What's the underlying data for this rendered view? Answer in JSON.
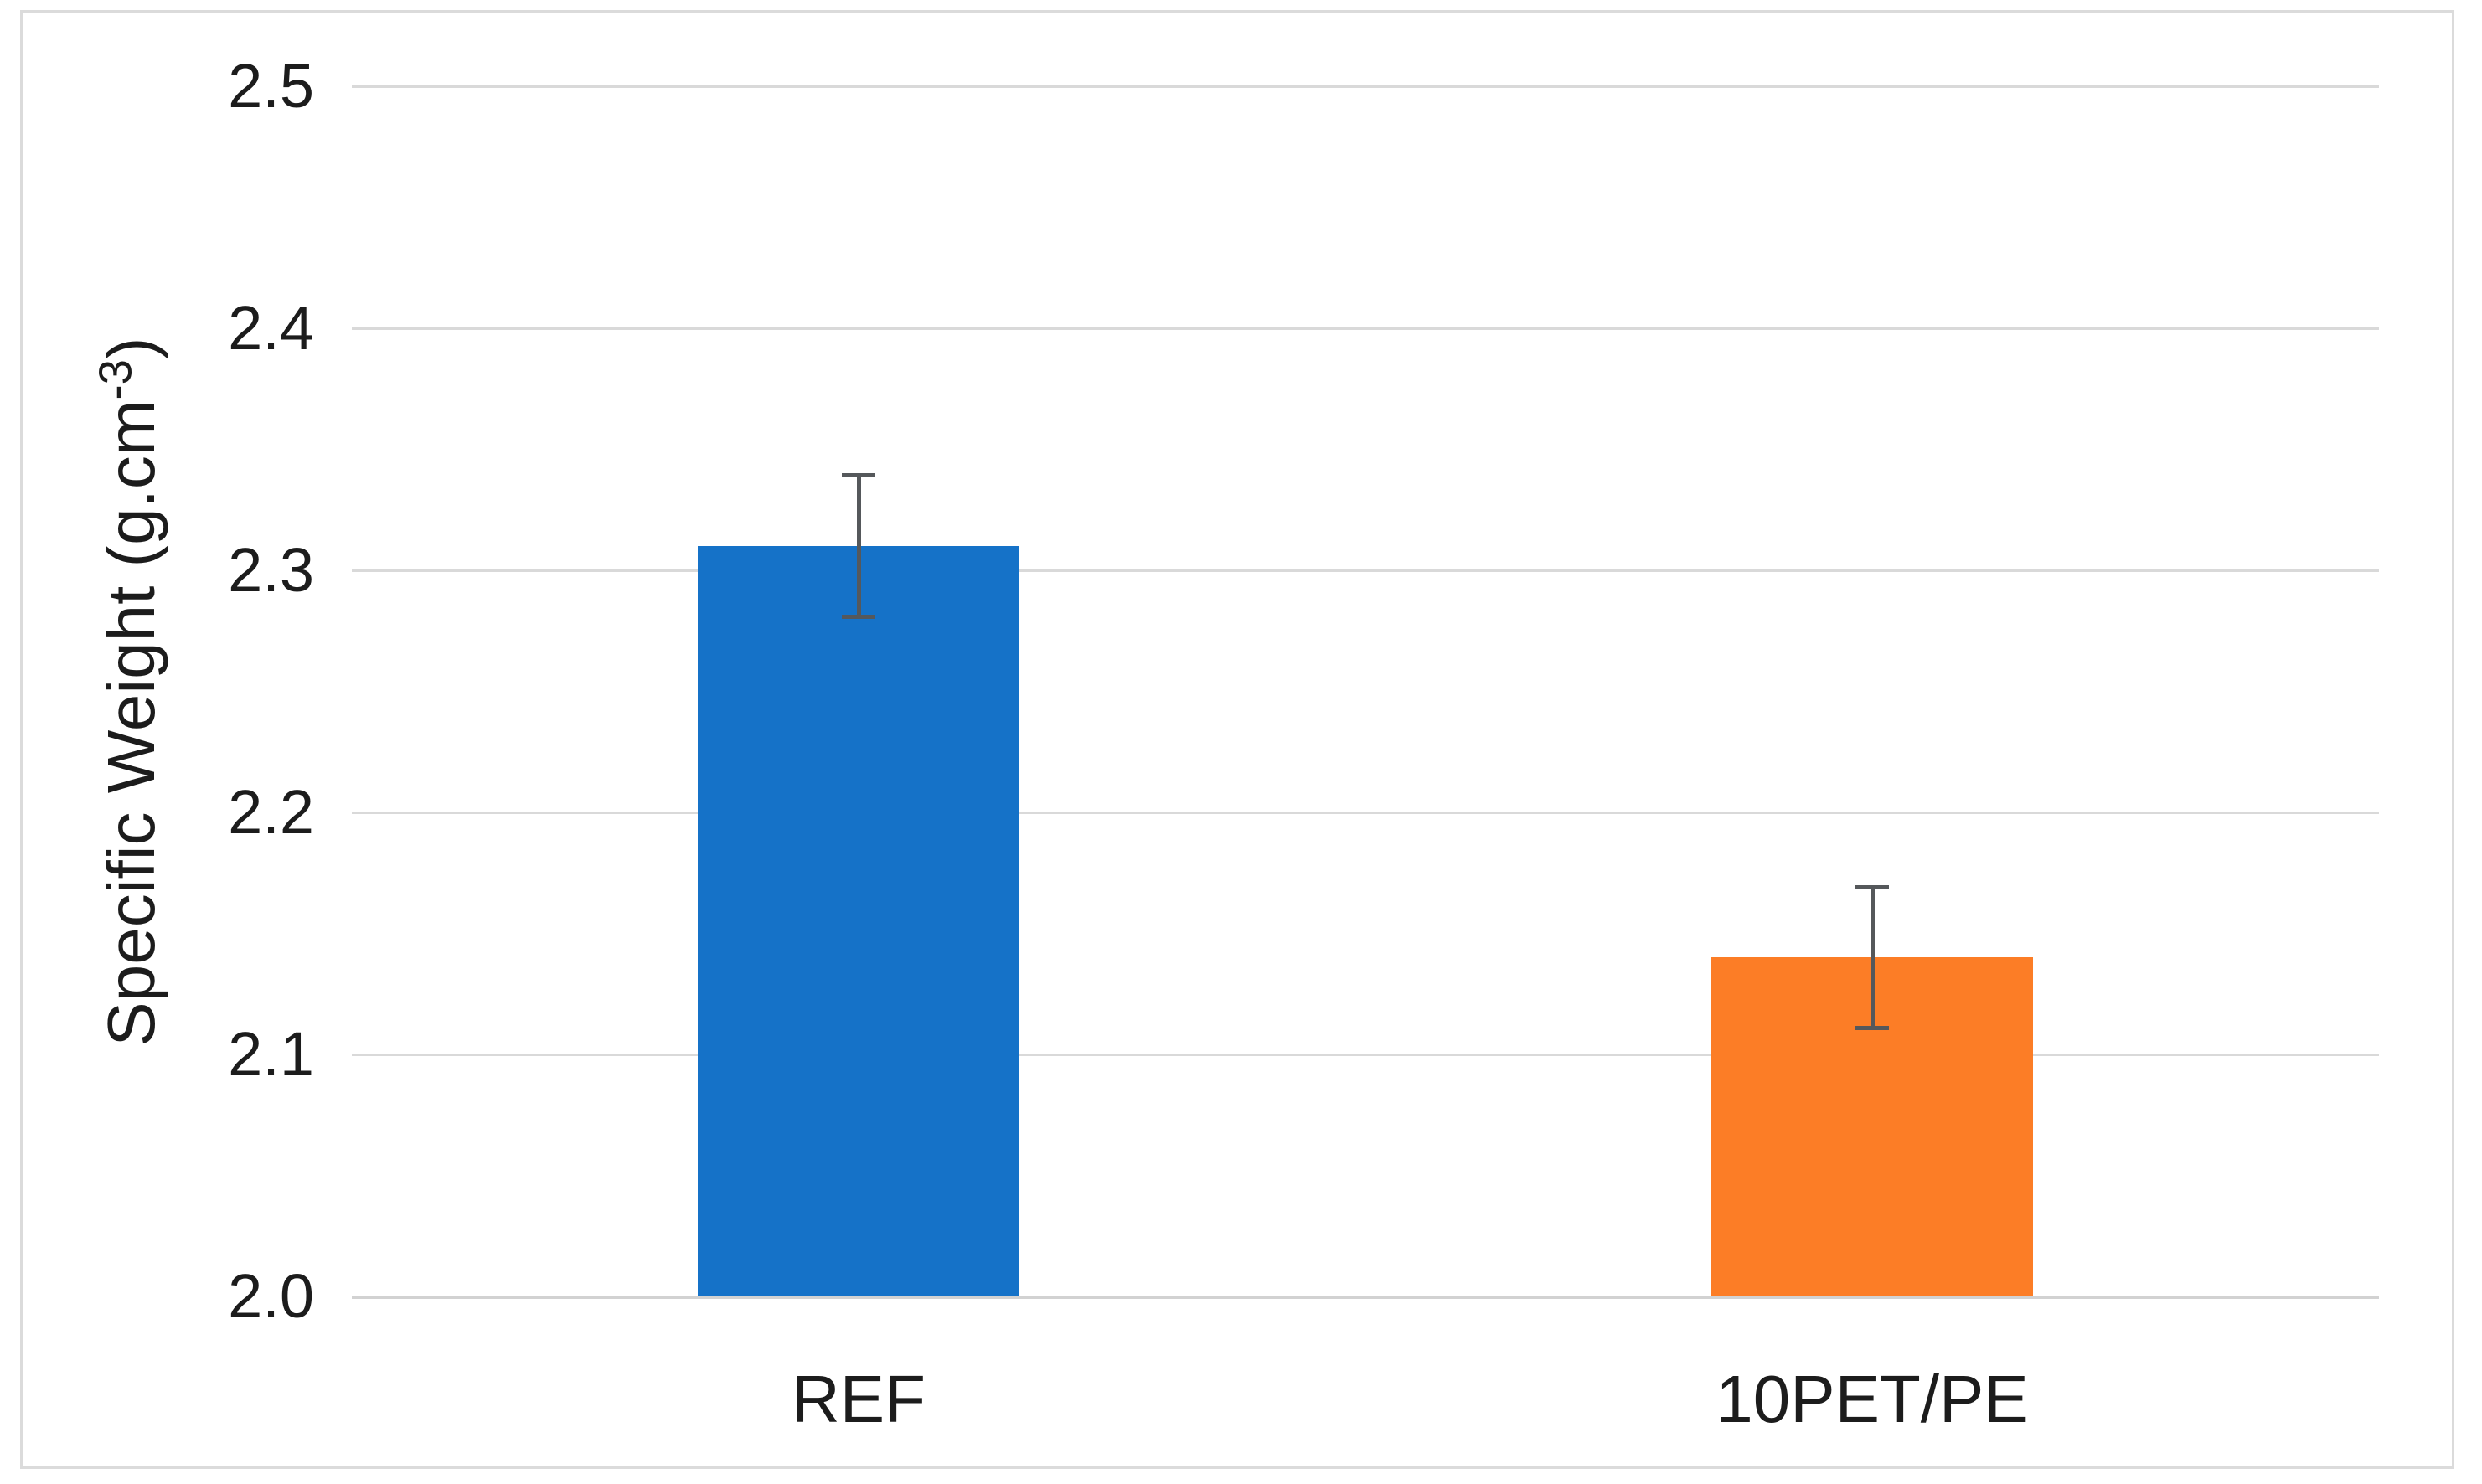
{
  "figure": {
    "background": "#FFFFFF",
    "frame_border_color": "#DBDBDB"
  },
  "chart_data": {
    "type": "bar",
    "title": "",
    "xlabel": "",
    "ylabel": "Specific Weight (g.cm⁻³)",
    "ylabel_parts": {
      "prefix": "Specific Weight (g.cm",
      "superscript": "-3",
      "suffix": ")"
    },
    "categories": [
      "REF",
      "10PET/PE"
    ],
    "values": [
      2.31,
      2.14
    ],
    "error_plus": [
      0.03,
      0.03
    ],
    "error_minus": [
      0.03,
      0.03
    ],
    "bar_colors": [
      "#1572C8",
      "#FC7D26"
    ],
    "error_bar_color": "#55585B",
    "ylim": [
      2.0,
      2.5
    ],
    "ytick_step": 0.1,
    "ytick_labels": [
      "2.0",
      "2.1",
      "2.2",
      "2.3",
      "2.4",
      "2.5"
    ],
    "grid": true,
    "gridline_color": "#D9D9D9",
    "axis_line_color": "#D2D2D2",
    "text_color": "#1C1C1C",
    "legend": false
  }
}
